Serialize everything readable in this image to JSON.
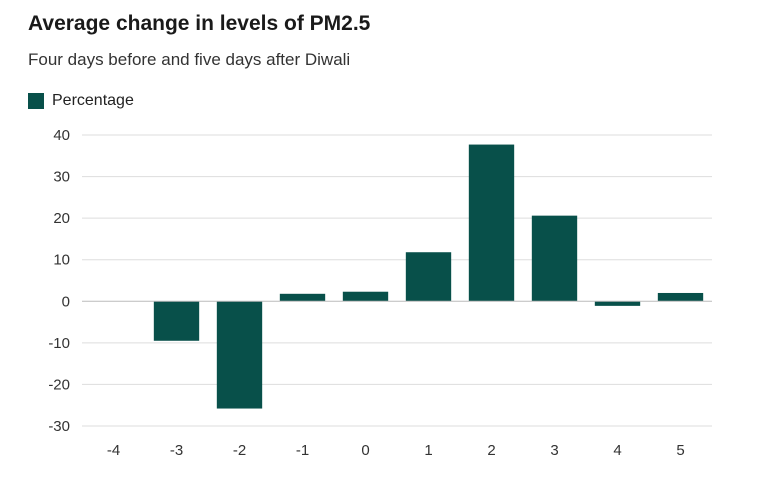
{
  "title": "Average change in levels of PM2.5",
  "subtitle": "Four days before and five days after Diwali",
  "chart_data": {
    "type": "bar",
    "title": "Average change in levels of PM2.5",
    "subtitle": "Four days before and five days after Diwali",
    "xlabel": "",
    "ylabel": "",
    "categories": [
      "-4",
      "-3",
      "-2",
      "-1",
      "0",
      "1",
      "2",
      "3",
      "4",
      "5"
    ],
    "series": [
      {
        "name": "Percentage",
        "values": [
          0,
          -9.5,
          -25.8,
          1.8,
          2.3,
          11.8,
          37.7,
          20.6,
          -1.1,
          2.0
        ]
      }
    ],
    "ylim": [
      -30,
      40
    ],
    "yticks": [
      40,
      30,
      20,
      10,
      0,
      -10,
      -20,
      -30
    ],
    "grid": true,
    "legend": "top-left",
    "colors": {
      "bar": "#08504a",
      "grid": "#dddddd",
      "zero_line": "#bbbbbb"
    }
  }
}
